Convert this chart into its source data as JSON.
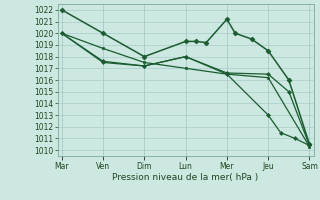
{
  "background_color": "#cce8e0",
  "grid_color": "#aacccc",
  "line_color": "#1a5c30",
  "x_labels": [
    "Mar",
    "Ven",
    "Dim",
    "Lun",
    "Mer",
    "Jeu",
    "Sam"
  ],
  "x_ticks": [
    0,
    1,
    2,
    3,
    4,
    5,
    6
  ],
  "xlabel": "Pression niveau de la mer( hPa )",
  "ylim": [
    1009.5,
    1022.5
  ],
  "yticks": [
    1010,
    1011,
    1012,
    1013,
    1014,
    1015,
    1016,
    1017,
    1018,
    1019,
    1020,
    1021,
    1022
  ],
  "series": [
    {
      "x": [
        0,
        1,
        2,
        3.0,
        3.25,
        3.5,
        4.0,
        4.2,
        4.6,
        5.0,
        5.5,
        6.0
      ],
      "y": [
        1022,
        1020,
        1018,
        1019.3,
        1019.3,
        1019.2,
        1021.2,
        1020.0,
        1019.5,
        1018.5,
        1016.0,
        1010.5
      ],
      "marker": "D",
      "markersize": 2.5,
      "linewidth": 1.1
    },
    {
      "x": [
        0,
        1,
        2,
        3,
        4,
        5,
        6
      ],
      "y": [
        1020.0,
        1018.7,
        1017.5,
        1017.0,
        1016.5,
        1016.2,
        1010.3
      ],
      "marker": "s",
      "markersize": 2.0,
      "linewidth": 0.9
    },
    {
      "x": [
        0,
        1,
        2,
        3,
        4,
        5,
        5.5,
        6
      ],
      "y": [
        1020.0,
        1017.6,
        1017.2,
        1018.0,
        1016.6,
        1016.5,
        1015.0,
        1010.4
      ],
      "marker": "D",
      "markersize": 2.0,
      "linewidth": 0.9
    },
    {
      "x": [
        0,
        1,
        2,
        3,
        4,
        5,
        5.3,
        5.65,
        6
      ],
      "y": [
        1020.0,
        1017.5,
        1017.2,
        1018.0,
        1016.5,
        1013.0,
        1011.5,
        1011.0,
        1010.4
      ],
      "marker": "D",
      "markersize": 2.0,
      "linewidth": 0.9
    }
  ]
}
